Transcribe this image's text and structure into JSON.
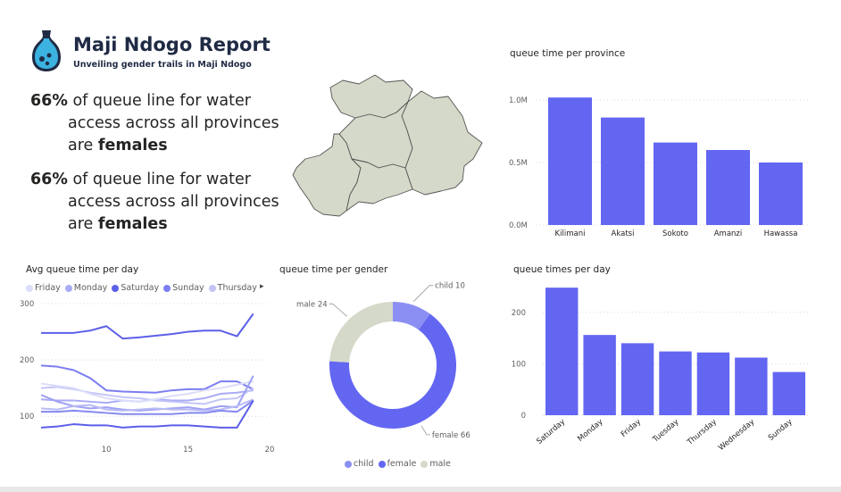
{
  "header": {
    "title": "Maji Ndogo Report",
    "subtitle": "Unveiling gender trails in Maji Ndogo"
  },
  "stats": [
    {
      "pct": "66%",
      "line1": "of queue line for water",
      "line2": "access across all provinces",
      "line3_prefix": "are ",
      "line3_bold": "females"
    },
    {
      "pct": "66%",
      "line1": "of queue line for water",
      "line2": "access across all provinces",
      "line3_prefix": "are ",
      "line3_bold": "females"
    }
  ],
  "colors": {
    "primary": "#6366f1",
    "map_fill": "#d5d9c9",
    "child": "#8b8ff3",
    "male": "#d5d9c9"
  },
  "chart_data": [
    {
      "type": "bar",
      "title": "queue time per province",
      "categories": [
        "Kilimani",
        "Akatsi",
        "Sokoto",
        "Amanzi",
        "Hawassa"
      ],
      "values": [
        1020000,
        860000,
        660000,
        600000,
        500000
      ],
      "ylim": [
        0,
        1000000
      ],
      "yticks": [
        "0.0M",
        "0.5M",
        "1.0M"
      ],
      "ytick_values": [
        0,
        500000,
        1000000
      ],
      "grid": true
    },
    {
      "type": "line",
      "title": "Avg queue time per day",
      "legend": [
        "Friday",
        "Monday",
        "Saturday",
        "Sunday",
        "Thursday"
      ],
      "legend_colors": [
        "#dcddf9",
        "#a9abf6",
        "#5c5fe8",
        "#7b7ef0",
        "#c3c5f7"
      ],
      "legend_more": "▸",
      "x": [
        6,
        7,
        8,
        9,
        10,
        11,
        12,
        13,
        14,
        15,
        16,
        17,
        18,
        19
      ],
      "xticks": [
        "10",
        "15",
        "20"
      ],
      "xtick_values": [
        10,
        15,
        20
      ],
      "yticks": [
        "100",
        "200",
        "300"
      ],
      "ytick_values": [
        100,
        200,
        300
      ],
      "xlim": [
        6,
        20
      ],
      "ylim": [
        75,
        300
      ],
      "series": [
        {
          "name": "Saturday",
          "color": "#5c5fe8",
          "values": [
            248,
            248,
            248,
            252,
            260,
            238,
            240,
            243,
            246,
            250,
            252,
            252,
            242,
            282
          ]
        },
        {
          "name": "Sunday",
          "color": "#7b7ef0",
          "values": [
            190,
            188,
            182,
            168,
            146,
            144,
            143,
            142,
            146,
            148,
            148,
            162,
            162,
            148
          ]
        },
        {
          "name": "Monday",
          "color": "#a9abf6",
          "values": [
            130,
            128,
            128,
            126,
            124,
            128,
            126,
            130,
            128,
            128,
            132,
            140,
            142,
            146
          ]
        },
        {
          "name": "Thursday",
          "color": "#c3c5f7",
          "values": [
            150,
            152,
            148,
            142,
            138,
            134,
            132,
            128,
            126,
            124,
            122,
            130,
            132,
            150
          ]
        },
        {
          "name": "Friday",
          "color": "#dcddf9",
          "values": [
            158,
            154,
            150,
            140,
            132,
            128,
            126,
            130,
            136,
            140,
            146,
            150,
            156,
            162
          ]
        },
        {
          "name": "",
          "color": "#9ea0f3",
          "values": [
            138,
            126,
            118,
            114,
            116,
            112,
            110,
            112,
            114,
            116,
            112,
            118,
            116,
            172
          ]
        },
        {
          "name": "",
          "color": "#b9bbf5",
          "values": [
            114,
            112,
            118,
            120,
            112,
            110,
            112,
            114,
            112,
            112,
            110,
            112,
            118,
            130
          ]
        },
        {
          "name": "",
          "color": "#8588ef",
          "values": [
            108,
            108,
            110,
            108,
            106,
            104,
            104,
            104,
            104,
            106,
            106,
            110,
            108,
            128
          ]
        },
        {
          "name": "",
          "color": "#5c5fe8",
          "values": [
            80,
            82,
            86,
            84,
            84,
            80,
            82,
            82,
            84,
            84,
            82,
            80,
            80,
            128
          ]
        }
      ]
    },
    {
      "type": "pie",
      "title": "queue time per gender",
      "categories": [
        "child",
        "female",
        "male"
      ],
      "values": [
        10,
        66,
        24
      ],
      "data_labels": [
        "child 10",
        "female 66",
        "male 24"
      ],
      "colors": [
        "#8b8ff3",
        "#6366f1",
        "#d5d9c9"
      ],
      "legend": [
        "child",
        "female",
        "male"
      ]
    },
    {
      "type": "bar",
      "title": "queue times per day",
      "categories": [
        "Saturday",
        "Monday",
        "Friday",
        "Tuesday",
        "Thursday",
        "Wednesday",
        "Sunday"
      ],
      "values": [
        248,
        156,
        140,
        124,
        122,
        112,
        84
      ],
      "ylim": [
        0,
        250
      ],
      "yticks": [
        "0",
        "100",
        "200"
      ],
      "ytick_values": [
        0,
        100,
        200
      ],
      "grid": true
    }
  ]
}
